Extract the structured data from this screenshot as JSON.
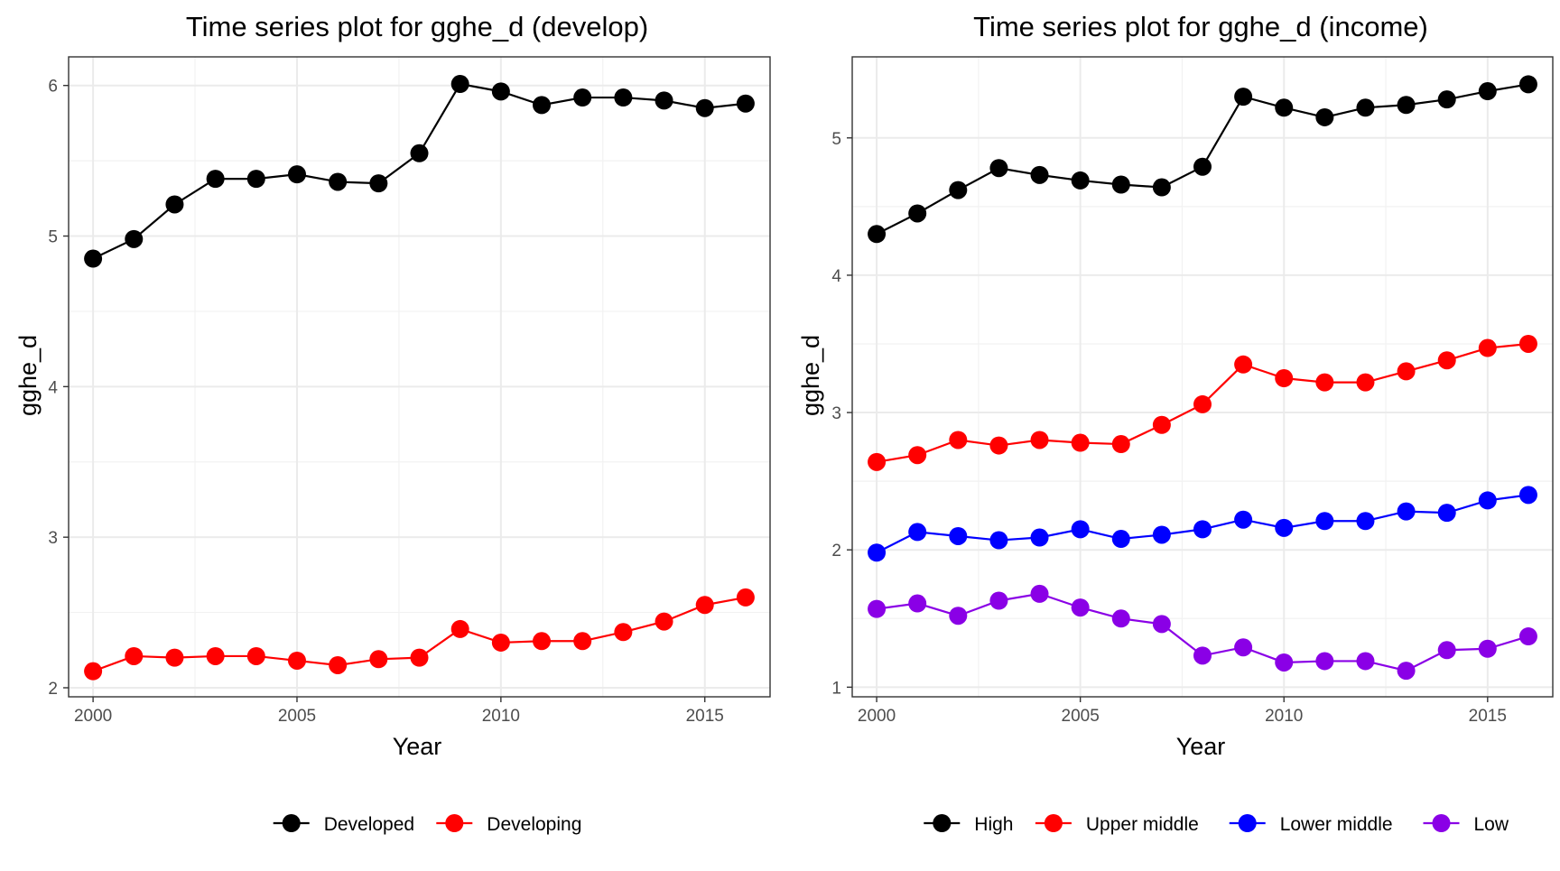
{
  "chart_data": [
    {
      "type": "line",
      "title": "Time series plot for gghe_d (develop)",
      "xlabel": "Year",
      "ylabel": "gghe_d",
      "xlim": [
        1999.4,
        2016.6
      ],
      "ylim": [
        1.94,
        6.19
      ],
      "x_ticks": [
        2000,
        2005,
        2010,
        2015
      ],
      "y_ticks": [
        2,
        3,
        4,
        5,
        6
      ],
      "grid": true,
      "legend_position": "bottom",
      "x": [
        2000,
        2001,
        2002,
        2003,
        2004,
        2005,
        2006,
        2007,
        2008,
        2009,
        2010,
        2011,
        2012,
        2013,
        2014,
        2015,
        2016
      ],
      "series": [
        {
          "name": "Developed",
          "color": "#000000",
          "values": [
            4.85,
            4.98,
            5.21,
            5.38,
            5.38,
            5.41,
            5.36,
            5.35,
            5.55,
            6.01,
            5.96,
            5.87,
            5.92,
            5.92,
            5.9,
            5.85,
            5.88
          ]
        },
        {
          "name": "Developing",
          "color": "#ff0000",
          "values": [
            2.11,
            2.21,
            2.2,
            2.21,
            2.21,
            2.18,
            2.15,
            2.19,
            2.2,
            2.39,
            2.3,
            2.31,
            2.31,
            2.37,
            2.44,
            2.55,
            2.6
          ]
        }
      ]
    },
    {
      "type": "line",
      "title": "Time series plot for gghe_d (income)",
      "xlabel": "Year",
      "ylabel": "gghe_d",
      "xlim": [
        1999.4,
        2016.6
      ],
      "ylim": [
        0.93,
        5.59
      ],
      "x_ticks": [
        2000,
        2005,
        2010,
        2015
      ],
      "y_ticks": [
        1,
        2,
        3,
        4,
        5
      ],
      "grid": true,
      "legend_position": "bottom",
      "x": [
        2000,
        2001,
        2002,
        2003,
        2004,
        2005,
        2006,
        2007,
        2008,
        2009,
        2010,
        2011,
        2012,
        2013,
        2014,
        2015,
        2016
      ],
      "series": [
        {
          "name": "High",
          "color": "#000000",
          "values": [
            4.3,
            4.45,
            4.62,
            4.78,
            4.73,
            4.69,
            4.66,
            4.64,
            4.79,
            5.3,
            5.22,
            5.15,
            5.22,
            5.24,
            5.28,
            5.34,
            5.39
          ]
        },
        {
          "name": "Upper middle",
          "color": "#ff0000",
          "values": [
            2.64,
            2.69,
            2.8,
            2.76,
            2.8,
            2.78,
            2.77,
            2.91,
            3.06,
            3.35,
            3.25,
            3.22,
            3.22,
            3.3,
            3.38,
            3.47,
            3.5
          ]
        },
        {
          "name": "Lower middle",
          "color": "#0000ff",
          "values": [
            1.98,
            2.13,
            2.1,
            2.07,
            2.09,
            2.15,
            2.08,
            2.11,
            2.15,
            2.22,
            2.16,
            2.21,
            2.21,
            2.28,
            2.27,
            2.36,
            2.4
          ]
        },
        {
          "name": "Low",
          "color": "#8a00e6",
          "values": [
            1.57,
            1.61,
            1.52,
            1.63,
            1.68,
            1.58,
            1.5,
            1.46,
            1.23,
            1.29,
            1.18,
            1.19,
            1.19,
            1.12,
            1.27,
            1.28,
            1.37
          ]
        }
      ]
    }
  ]
}
